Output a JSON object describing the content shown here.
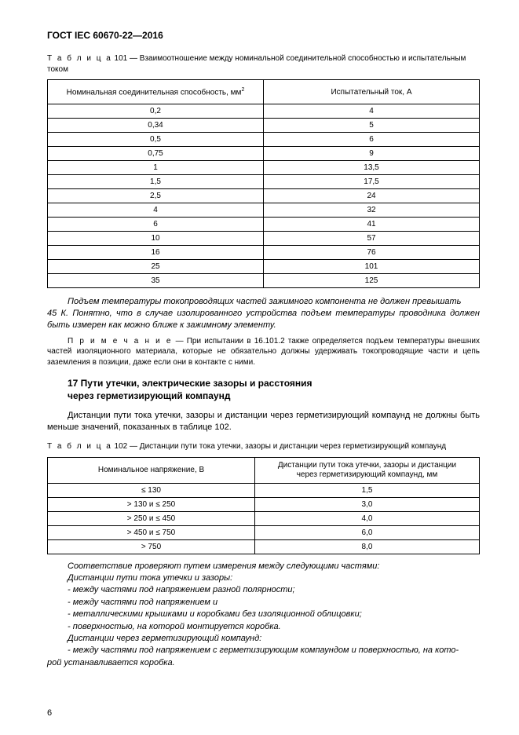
{
  "doc": {
    "id": "ГОСТ IEC 60670-22—2016"
  },
  "table101": {
    "caption_prefix": "Т а б л и ц а",
    "caption": " 101 — Взаимоотношение между номинальной соединительной способностью и испытательным током",
    "col1_header_a": "Номинальная соединительная способность, мм",
    "col1_header_sup": "2",
    "col2_header": "Испытательный ток, А",
    "rows": [
      {
        "a": "0,2",
        "b": "4"
      },
      {
        "a": "0,34",
        "b": "5"
      },
      {
        "a": "0,5",
        "b": "6"
      },
      {
        "a": "0,75",
        "b": "9"
      },
      {
        "a": "1",
        "b": "13,5"
      },
      {
        "a": "1,5",
        "b": "17,5"
      },
      {
        "a": "2,5",
        "b": "24"
      },
      {
        "a": "4",
        "b": "32"
      },
      {
        "a": "6",
        "b": "41"
      },
      {
        "a": "10",
        "b": "57"
      },
      {
        "a": "16",
        "b": "76"
      },
      {
        "a": "25",
        "b": "101"
      },
      {
        "a": "35",
        "b": "125"
      }
    ]
  },
  "para_italic_1_a": "Подъем температуры токопроводящих частей зажимного компонента не должен превышать",
  "para_italic_1_b": "45 К. Понятно, что в случае изолированного устройства подъем температуры проводника должен быть измерен как можно ближе к зажимному элементу.",
  "note_prefix": "П р и м е ч а н и е",
  "note_body": " — При испытании в 16.101.2 также определяется подъем температуры внешних частей изоляционного материала, которые не обязательно должны удерживать токопроводящие части и цепь заземления в позиции, даже если они в контакте с ними.",
  "h17_a": "17  Пути утечки, электрические зазоры и расстояния",
  "h17_b": "через герметизирующий компаунд",
  "para_plain_a": "Дистанции пути тока утечки, зазоры и дистанции через герметизирующий компаунд не должны",
  "para_plain_b": "быть меньше значений, показанных в таблице 102.",
  "table102": {
    "caption_prefix": "Т а б л и ц а",
    "caption": " 102 — Дистанции пути тока утечки, зазоры и дистанции через герметизирующий компаунд",
    "col1_header": "Номинальное напряжение, В",
    "col2_header_a": "Дистанции пути тока утечки, зазоры и дистанции",
    "col2_header_b": "через герметизирующий компаунд, мм",
    "rows": [
      {
        "a": "≤ 130",
        "b": "1,5"
      },
      {
        "a": "> 130 и ≤ 250",
        "b": "3,0"
      },
      {
        "a": "> 250 и ≤ 450",
        "b": "4,0"
      },
      {
        "a": "> 450 и ≤ 750",
        "b": "6,0"
      },
      {
        "a": "> 750",
        "b": "8,0"
      }
    ]
  },
  "list": {
    "l1": "Соответствие проверяют путем измерения между следующими частями:",
    "l2": "Дистанции пути тока утечки и зазоры:",
    "l3": "- между частями под напряжением разной полярности;",
    "l4": "- между частями под напряжением и",
    "l5": "- металлическими крышками и коробками без изоляционной облицовки;",
    "l6": "- поверхностью, на которой монтируется коробка.",
    "l7": "Дистанции через герметизирующий компаунд:",
    "l8a": "- между частями под напряжением с герметизирующим компаундом и поверхностью, на кото-",
    "l8b": "рой устанавливается коробка."
  },
  "pagenum": "6"
}
